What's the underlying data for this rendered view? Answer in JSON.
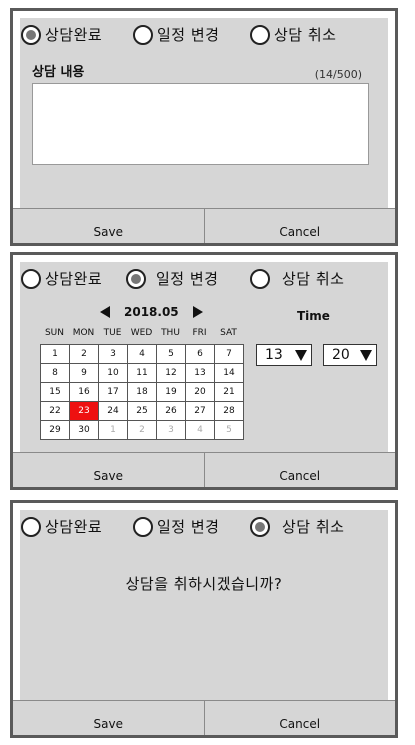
{
  "panel1": {
    "radios": [
      {
        "label": "상담완료",
        "selected": true
      },
      {
        "label": "일정 변경",
        "selected": false
      },
      {
        "label": "상담 취소",
        "selected": false
      }
    ],
    "content_label": "상담 내용",
    "counter": "(14/500)",
    "textarea_value": "",
    "save_label": "Save",
    "cancel_label": "Cancel"
  },
  "panel2": {
    "radios": [
      {
        "label": "상담완료",
        "selected": false
      },
      {
        "label": "일정 변경",
        "selected": true
      },
      {
        "label": "상담 취소",
        "selected": false
      }
    ],
    "month_label": "2018.05",
    "weekdays": [
      "SUN",
      "MON",
      "TUE",
      "WED",
      "THU",
      "FRI",
      "SAT"
    ],
    "weeks": [
      [
        "1",
        "2",
        "3",
        "4",
        "5",
        "6",
        "7"
      ],
      [
        "8",
        "9",
        "10",
        "11",
        "12",
        "13",
        "14"
      ],
      [
        "15",
        "16",
        "17",
        "18",
        "19",
        "20",
        "21"
      ],
      [
        "22",
        "23",
        "24",
        "25",
        "26",
        "27",
        "28"
      ],
      [
        "29",
        "30",
        "1",
        "2",
        "3",
        "4",
        "5"
      ]
    ],
    "selected_day": "23",
    "time_label": "Time",
    "hour": "13",
    "minute": "20",
    "save_label": "Save",
    "cancel_label": "Cancel"
  },
  "panel3": {
    "radios": [
      {
        "label": "상담완료",
        "selected": false
      },
      {
        "label": "일정 변경",
        "selected": false
      },
      {
        "label": "상담 취소",
        "selected": true
      }
    ],
    "question": "상담을 취하시겠습니까?",
    "save_label": "Save",
    "cancel_label": "Cancel"
  },
  "colors": {
    "panel_bg": "#d6d6d6",
    "border": "#5a5a5a",
    "selected_day": "#ee1111"
  }
}
